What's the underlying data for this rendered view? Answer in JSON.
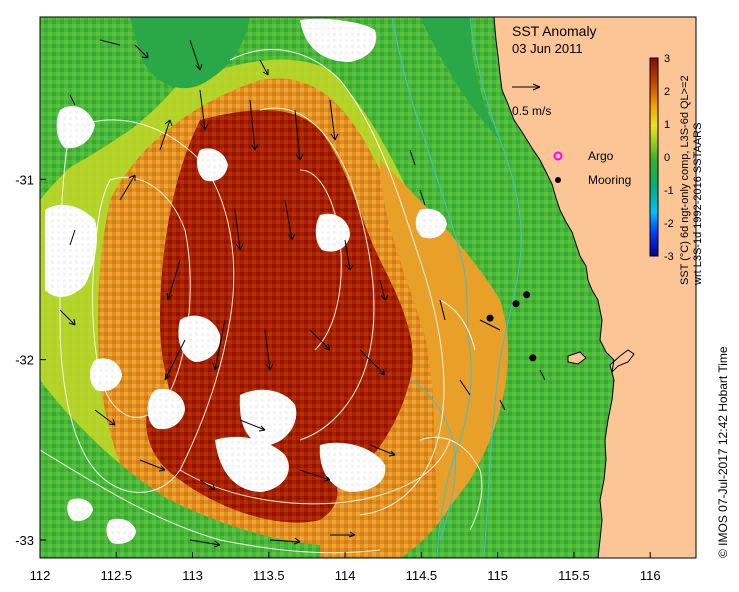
{
  "map": {
    "title": "SST Anomaly",
    "date": "03 Jun 2011",
    "x_ticks": [
      "112",
      "112.5",
      "113",
      "113.5",
      "114",
      "114.5",
      "115",
      "115.5",
      "116"
    ],
    "y_ticks": [
      "-31",
      "-32",
      "-33"
    ],
    "lon_range": [
      112,
      116.3
    ],
    "lat_range": [
      -33.1,
      -30.1
    ]
  },
  "scale_arrow": {
    "label": "0.5 m/s"
  },
  "legend": {
    "items": [
      {
        "label": "Argo",
        "color": "#ff00ff",
        "marker": "open-circle"
      },
      {
        "label": "Mooring",
        "color": "#000000",
        "marker": "filled-circle"
      }
    ]
  },
  "colorbar": {
    "ticks": [
      "3",
      "2",
      "1",
      "0",
      "-1",
      "-2",
      "-3"
    ],
    "label_line1": "SST (°C) 6d ngt-only comp, L3S-6d QL>=2",
    "label_line2": "wrt L3S-1d 1992-2016 SSTAARS",
    "colors": [
      "#0000a0",
      "#0050ff",
      "#00c8ff",
      "#00c060",
      "#40b030",
      "#a0d020",
      "#f0e020",
      "#f0a000",
      "#d05000",
      "#a01000",
      "#801000"
    ]
  },
  "credit": "© IMOS 07-Jul-2017 12:42 Hobart Time",
  "moorings": [
    {
      "lon": 114.95,
      "lat": -31.77
    },
    {
      "lon": 115.12,
      "lat": -31.69
    },
    {
      "lon": 115.19,
      "lat": -31.64
    },
    {
      "lon": 115.23,
      "lat": -31.99
    }
  ],
  "colors": {
    "land": "#fcc596",
    "anomaly_high": "#a01c00",
    "anomaly_mid": "#e8a030",
    "anomaly_low": "#3cb440",
    "no_data": "#ffffff",
    "bathymetry_contour": "#40c0d0"
  }
}
